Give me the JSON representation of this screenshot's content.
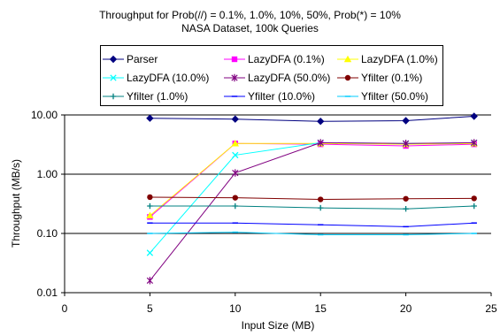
{
  "title_lines": [
    "Throughput for Prob(//) = 0.1%, 1.0%, 10%, 50%, Prob(*) = 10%",
    "NASA Dataset, 100k Queries"
  ],
  "chart_data": {
    "type": "line",
    "xlabel": "Input Size (MB)",
    "ylabel": "Throughput (MB/s)",
    "xlim": [
      0,
      25
    ],
    "ylim": [
      0.01,
      10
    ],
    "yscale": "log",
    "x_ticks": [
      "0",
      "5",
      "10",
      "15",
      "20",
      "25"
    ],
    "y_ticks": [
      "10.00",
      "1.00",
      "0.10",
      "0.01"
    ],
    "grid": "horizontal",
    "legend_position": "top",
    "x": [
      5,
      10,
      15,
      20,
      24
    ],
    "series": [
      {
        "name": "Parser",
        "color": "#000080",
        "marker": "diamond",
        "values": [
          8.8,
          8.5,
          7.8,
          8.0,
          9.5
        ]
      },
      {
        "name": "LazyDFA (0.1%)",
        "color": "#FF00FF",
        "marker": "square",
        "values": [
          0.19,
          3.3,
          3.2,
          3.0,
          3.2
        ]
      },
      {
        "name": "LazyDFA (1.0%)",
        "color": "#FFFF00",
        "marker": "triangle",
        "values": [
          0.2,
          3.3,
          3.3,
          3.2,
          3.3
        ]
      },
      {
        "name": "LazyDFA (10.0%)",
        "color": "#00FFFF",
        "marker": "x",
        "values": [
          0.047,
          2.1,
          3.4,
          3.3,
          3.4
        ]
      },
      {
        "name": "LazyDFA (50.0%)",
        "color": "#800080",
        "marker": "star",
        "values": [
          0.016,
          1.05,
          3.4,
          3.3,
          3.4
        ]
      },
      {
        "name": "Yfilter (0.1%)",
        "color": "#800000",
        "marker": "circle",
        "values": [
          0.41,
          0.4,
          0.375,
          0.385,
          0.39
        ]
      },
      {
        "name": "Yfilter (1.0%)",
        "color": "#008080",
        "marker": "plus",
        "values": [
          0.29,
          0.29,
          0.27,
          0.26,
          0.29
        ]
      },
      {
        "name": "Yfilter (10.0%)",
        "color": "#0000FF",
        "marker": "dash",
        "values": [
          0.15,
          0.15,
          0.14,
          0.13,
          0.15
        ]
      },
      {
        "name": "Yfilter (50.0%)",
        "color": "#00CCFF",
        "marker": "dash",
        "values": [
          0.1,
          0.105,
          0.095,
          0.095,
          0.1
        ]
      }
    ]
  }
}
